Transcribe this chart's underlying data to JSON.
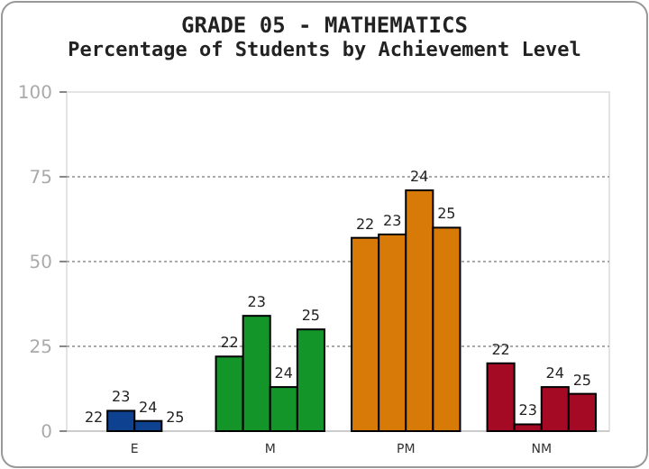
{
  "chart_data": {
    "type": "bar",
    "title": "GRADE 05 - MATHEMATICS",
    "subtitle": "Percentage of Students by Achievement Level",
    "categories": [
      "E",
      "M",
      "PM",
      "NM"
    ],
    "series": [
      {
        "name": "22",
        "colors": [
          "#0e4290",
          "#14952a",
          "#d87a08",
          "#a50a24"
        ],
        "values": [
          0,
          22,
          57,
          20
        ]
      },
      {
        "name": "23",
        "colors": [
          "#0e4290",
          "#14952a",
          "#d87a08",
          "#a50a24"
        ],
        "values": [
          6,
          34,
          58,
          2
        ]
      },
      {
        "name": "24",
        "colors": [
          "#0e4290",
          "#14952a",
          "#d87a08",
          "#a50a24"
        ],
        "values": [
          3,
          13,
          71,
          13
        ]
      },
      {
        "name": "25",
        "colors": [
          "#0e4290",
          "#14952a",
          "#d87a08",
          "#a50a24"
        ],
        "values": [
          0,
          30,
          60,
          11
        ]
      }
    ],
    "ylim": [
      0,
      100
    ],
    "yticks": [
      0,
      25,
      50,
      75,
      100
    ],
    "grid": "y"
  }
}
